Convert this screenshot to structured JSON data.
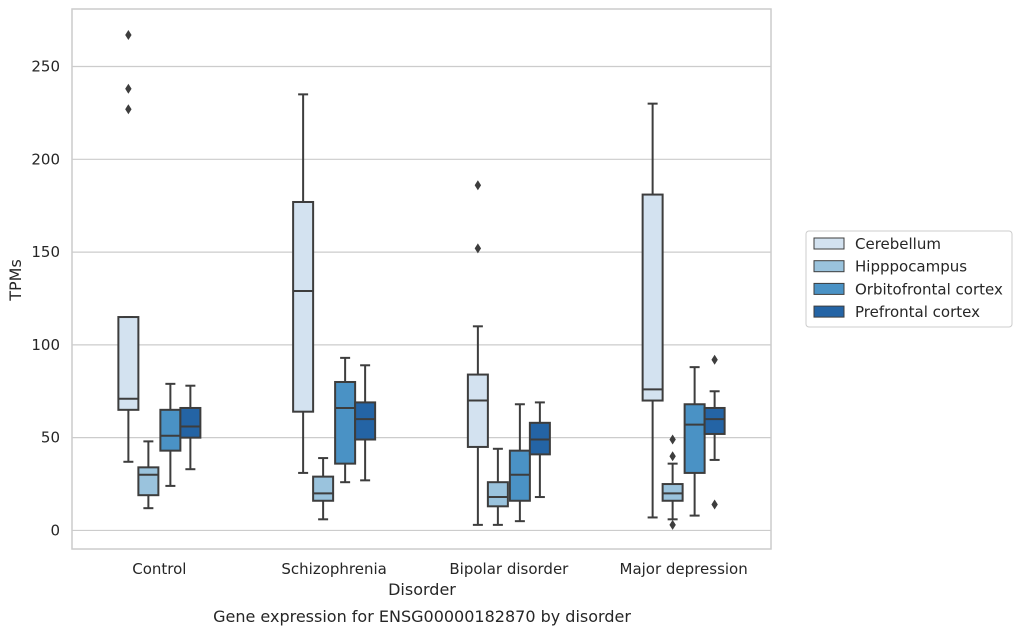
{
  "chart_data": {
    "type": "box",
    "xlabel": "Disorder",
    "ylabel": "TPMs",
    "caption": "Gene expression for ENSG00000182870 by disorder",
    "ylim": [
      -10,
      281
    ],
    "yticks": [
      0,
      50,
      100,
      150,
      200,
      250
    ],
    "grid": "horizontal",
    "legend_position": "right",
    "categories": [
      "Control",
      "Schizophrenia",
      "Bipolar disorder",
      "Major depression"
    ],
    "series": [
      {
        "name": "Cerebellum",
        "color": "#d3e2f0",
        "boxes": [
          {
            "whislo": 37,
            "q1": 65,
            "med": 71,
            "q3": 115,
            "whishi": 115,
            "fliers": [
              227,
              238,
              267
            ]
          },
          {
            "whislo": 31,
            "q1": 64,
            "med": 129,
            "q3": 177,
            "whishi": 235,
            "fliers": []
          },
          {
            "whislo": 3,
            "q1": 45,
            "med": 70,
            "q3": 84,
            "whishi": 110,
            "fliers": [
              152,
              186
            ]
          },
          {
            "whislo": 7,
            "q1": 70,
            "med": 76,
            "q3": 181,
            "whishi": 230,
            "fliers": []
          }
        ]
      },
      {
        "name": "Hipppocampus",
        "color": "#9ac3dd",
        "boxes": [
          {
            "whislo": 12,
            "q1": 19,
            "med": 30,
            "q3": 34,
            "whishi": 48,
            "fliers": []
          },
          {
            "whislo": 6,
            "q1": 16,
            "med": 20,
            "q3": 29,
            "whishi": 39,
            "fliers": []
          },
          {
            "whislo": 3,
            "q1": 13,
            "med": 18,
            "q3": 26,
            "whishi": 44,
            "fliers": []
          },
          {
            "whislo": 6,
            "q1": 16,
            "med": 20,
            "q3": 25,
            "whishi": 36,
            "fliers": [
              3,
              40,
              49
            ]
          }
        ]
      },
      {
        "name": "Orbitofrontal cortex",
        "color": "#4a92c5",
        "boxes": [
          {
            "whislo": 24,
            "q1": 43,
            "med": 51,
            "q3": 65,
            "whishi": 79,
            "fliers": []
          },
          {
            "whislo": 26,
            "q1": 36,
            "med": 66,
            "q3": 80,
            "whishi": 93,
            "fliers": []
          },
          {
            "whislo": 5,
            "q1": 16,
            "med": 30,
            "q3": 43,
            "whishi": 68,
            "fliers": []
          },
          {
            "whislo": 8,
            "q1": 31,
            "med": 57,
            "q3": 68,
            "whishi": 88,
            "fliers": []
          }
        ]
      },
      {
        "name": "Prefrontal cortex",
        "color": "#2464a5",
        "boxes": [
          {
            "whislo": 33,
            "q1": 50,
            "med": 56,
            "q3": 66,
            "whishi": 78,
            "fliers": []
          },
          {
            "whislo": 27,
            "q1": 49,
            "med": 60,
            "q3": 69,
            "whishi": 89,
            "fliers": []
          },
          {
            "whislo": 18,
            "q1": 41,
            "med": 49,
            "q3": 58,
            "whishi": 69,
            "fliers": []
          },
          {
            "whislo": 38,
            "q1": 52,
            "med": 60,
            "q3": 66,
            "whishi": 75,
            "fliers": [
              14,
              92
            ]
          }
        ]
      }
    ]
  }
}
